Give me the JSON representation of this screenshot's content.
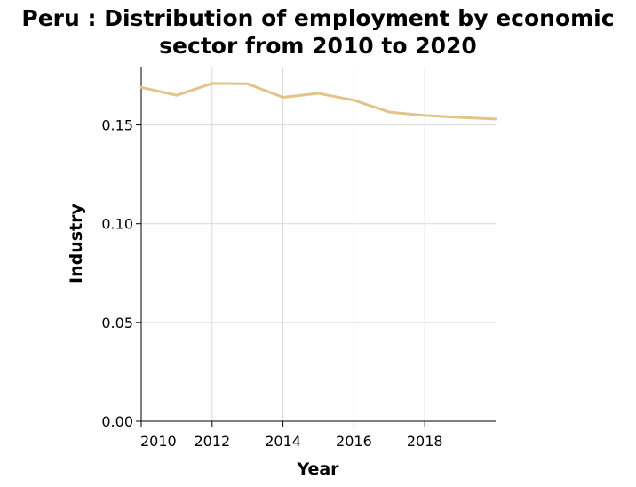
{
  "chart_data": {
    "type": "line",
    "title_lines": [
      "Peru : Distribution of employment by economic",
      "sector from 2010 to 2020"
    ],
    "xlabel": "Year",
    "ylabel": "Industry",
    "x_tick_labels": [
      "2010",
      "2012",
      "2014",
      "2016",
      "2018"
    ],
    "x_ticks": [
      2010,
      2012,
      2014,
      2016,
      2018
    ],
    "y_ticks": [
      0.0,
      0.05,
      0.1,
      0.15
    ],
    "y_tick_labels": [
      "0.00",
      "0.05",
      "0.10",
      "0.15"
    ],
    "xlim": [
      2010,
      2020
    ],
    "ylim": [
      0,
      0.1795
    ],
    "grid": true,
    "line_color": "#e0c48a",
    "series": [
      {
        "x": [
          2010,
          2011,
          2012,
          2013,
          2014,
          2015,
          2016,
          2017,
          2018,
          2019,
          2020
        ],
        "values": [
          0.169,
          0.165,
          0.171,
          0.1708,
          0.164,
          0.166,
          0.1625,
          0.1565,
          0.1548,
          0.1538,
          0.153
        ]
      }
    ]
  }
}
